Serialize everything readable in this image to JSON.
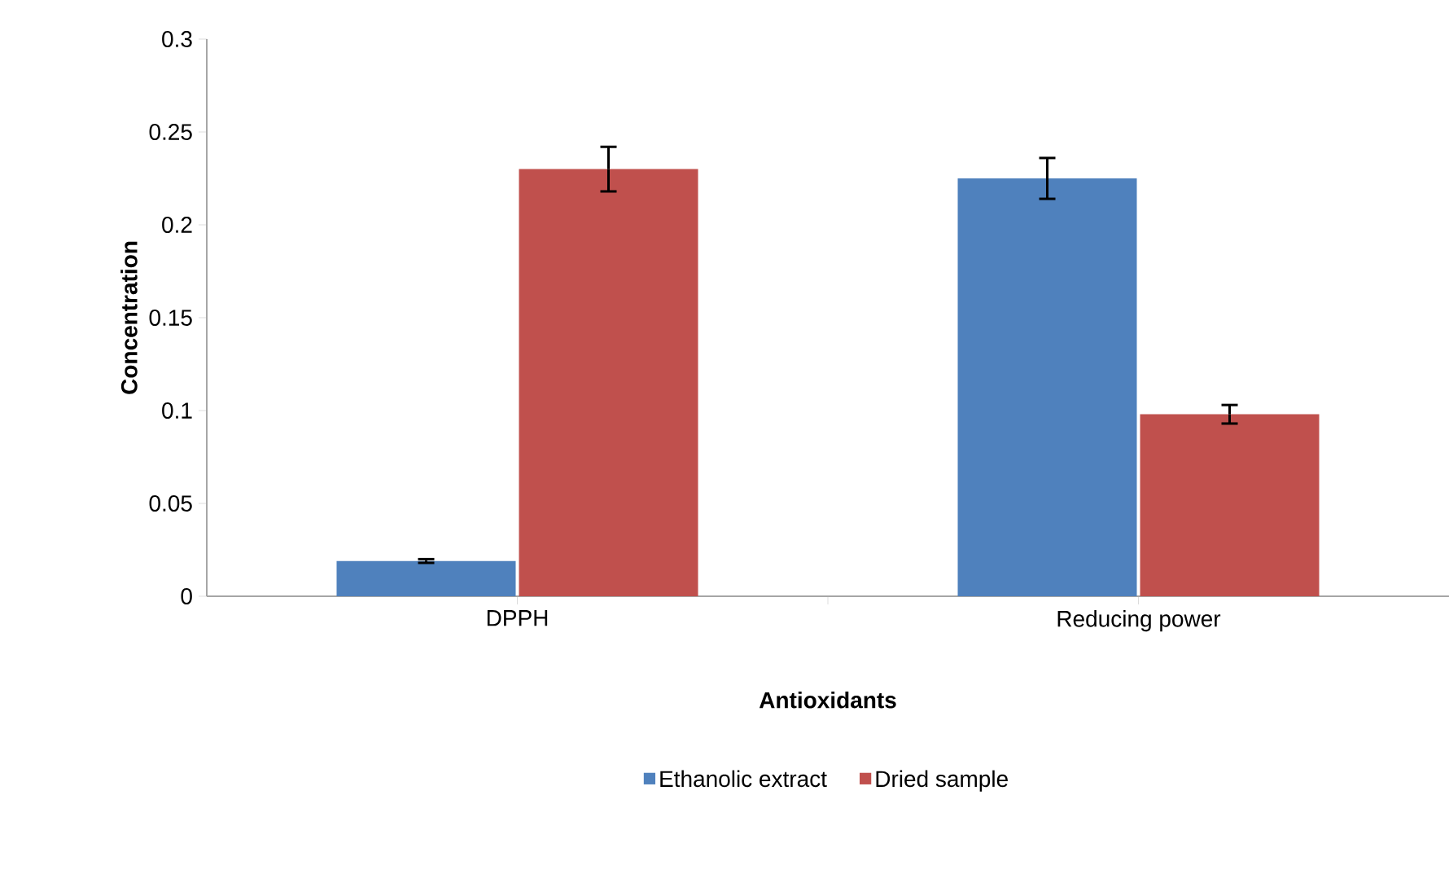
{
  "chart_data": {
    "type": "bar",
    "xlabel": "Antioxidants",
    "ylabel": "Concentration",
    "categories": [
      "DPPH",
      "Reducing power"
    ],
    "series": [
      {
        "name": "Ethanolic extract",
        "color": "#4f81bd",
        "values": [
          0.019,
          0.225
        ],
        "errors": [
          0.001,
          0.011
        ]
      },
      {
        "name": "Dried sample",
        "color": "#c0504d",
        "values": [
          0.23,
          0.098
        ],
        "errors": [
          0.012,
          0.005
        ]
      }
    ],
    "ylim": [
      0,
      0.3
    ],
    "yticks": [
      0,
      0.05,
      0.1,
      0.15,
      0.2,
      0.25,
      0.3
    ],
    "grid": false,
    "legend": "bottom"
  }
}
